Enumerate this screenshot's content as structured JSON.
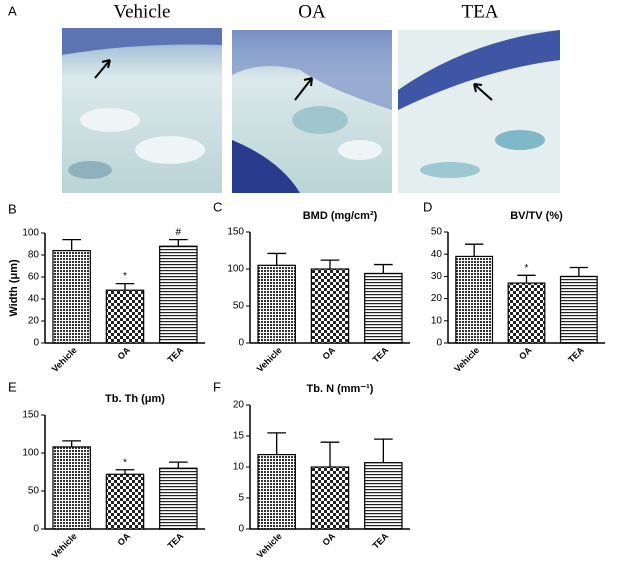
{
  "image_panel": {
    "panel": "A",
    "labels": [
      "Vehicle",
      "OA",
      "TEA"
    ]
  },
  "chart_data": [
    {
      "type": "bar",
      "panel": "B",
      "ylabel": "Width (μm)",
      "categories": [
        "Vehicle",
        "OA",
        "TEA"
      ],
      "values": [
        84,
        48,
        88
      ],
      "errors": [
        10,
        6,
        6
      ],
      "annotations": [
        null,
        "*",
        "#"
      ],
      "ylim": [
        0,
        100
      ],
      "yticks": [
        0,
        20,
        40,
        60,
        80,
        100
      ]
    },
    {
      "type": "bar",
      "panel": "C",
      "title": "BMD (mg/cm²)",
      "categories": [
        "Vehicle",
        "OA",
        "TEA"
      ],
      "values": [
        105,
        100,
        94
      ],
      "errors": [
        16,
        12,
        12
      ],
      "annotations": [
        null,
        null,
        null
      ],
      "ylim": [
        0,
        150
      ],
      "yticks": [
        0,
        50,
        100,
        150
      ]
    },
    {
      "type": "bar",
      "panel": "D",
      "title": "BV/TV (%)",
      "categories": [
        "Vehicle",
        "OA",
        "TEA"
      ],
      "values": [
        39,
        27,
        30
      ],
      "errors": [
        5.5,
        3.5,
        4
      ],
      "annotations": [
        null,
        "*",
        null
      ],
      "ylim": [
        0,
        50
      ],
      "yticks": [
        0,
        10,
        20,
        30,
        40,
        50
      ]
    },
    {
      "type": "bar",
      "panel": "E",
      "title": "Tb. Th (μm)",
      "categories": [
        "Vehicle",
        "OA",
        "TEA"
      ],
      "values": [
        108,
        72,
        80
      ],
      "errors": [
        8,
        6,
        8
      ],
      "annotations": [
        null,
        "*",
        null
      ],
      "ylim": [
        0,
        150
      ],
      "yticks": [
        0,
        50,
        100,
        150
      ]
    },
    {
      "type": "bar",
      "panel": "F",
      "title": "Tb. N (mm⁻¹)",
      "categories": [
        "Vehicle",
        "OA",
        "TEA"
      ],
      "values": [
        12,
        10,
        10.7
      ],
      "errors": [
        3.5,
        4,
        3.8
      ],
      "annotations": [
        null,
        null,
        null
      ],
      "ylim": [
        0,
        20
      ],
      "yticks": [
        0,
        5,
        10,
        15,
        20
      ]
    }
  ]
}
